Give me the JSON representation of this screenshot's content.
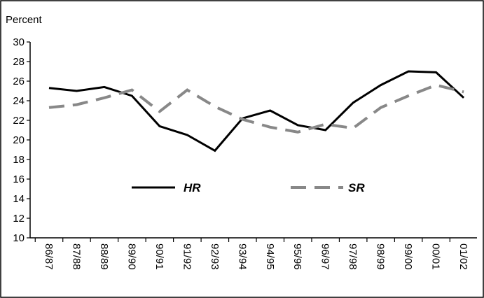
{
  "chart_data": {
    "type": "line",
    "y_label": "Percent",
    "categories": [
      "86/87",
      "87/88",
      "88/89",
      "89/90",
      "90/91",
      "91/92",
      "92/93",
      "93/94",
      "94/95",
      "95/96",
      "96/97",
      "97/98",
      "98/99",
      "99/00",
      "00/01",
      "01/02"
    ],
    "series": [
      {
        "name": "HR",
        "color": "#000000",
        "style": "solid",
        "values": [
          25.3,
          25.0,
          25.4,
          24.5,
          21.4,
          20.5,
          18.9,
          22.2,
          23.0,
          21.5,
          21.0,
          23.8,
          25.6,
          27.0,
          26.9,
          24.3
        ]
      },
      {
        "name": "SR",
        "color": "#888888",
        "style": "dashed",
        "values": [
          23.3,
          23.6,
          24.3,
          25.1,
          22.9,
          25.1,
          23.4,
          22.1,
          21.3,
          20.8,
          21.6,
          21.2,
          23.3,
          24.5,
          25.6,
          24.9
        ]
      }
    ],
    "ylim": [
      10,
      30
    ],
    "yticks": [
      10,
      12,
      14,
      16,
      18,
      20,
      22,
      24,
      26,
      28,
      30
    ],
    "legend": "center"
  }
}
